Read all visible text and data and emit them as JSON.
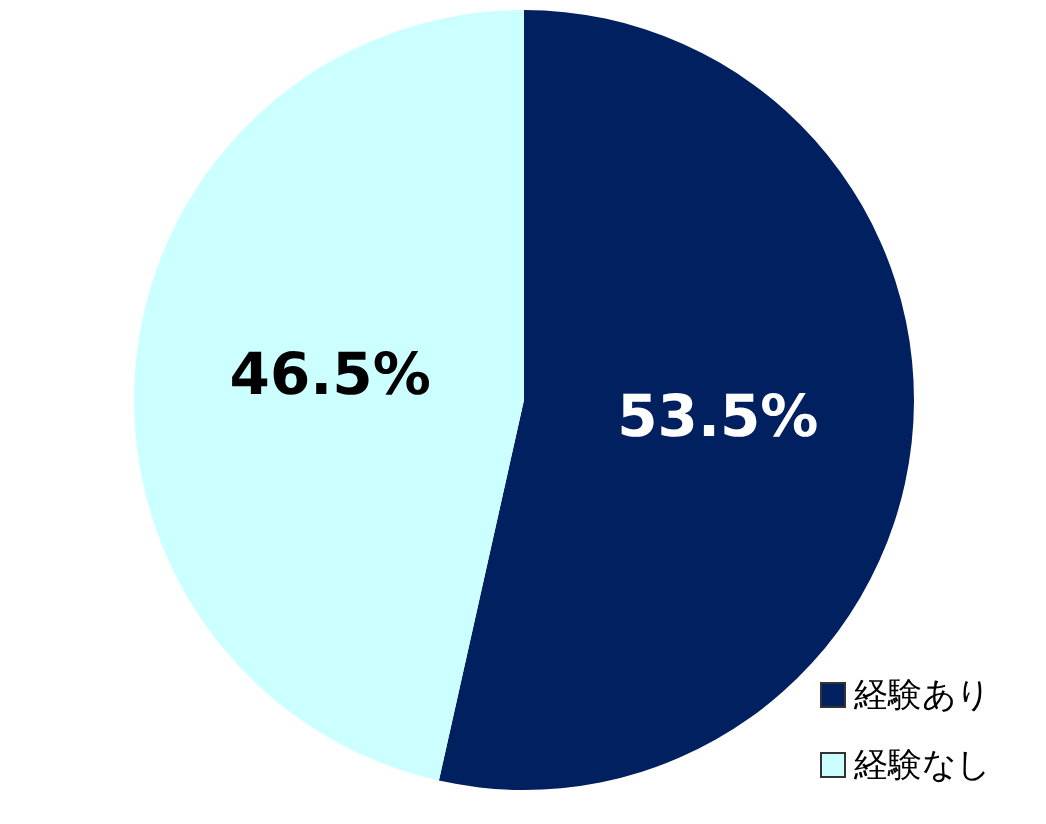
{
  "chart_data": {
    "type": "pie",
    "categories": [
      "経験あり",
      "経験なし"
    ],
    "values": [
      53.5,
      46.5
    ],
    "colors": [
      "#002060",
      "#ccffff"
    ],
    "value_labels": [
      "53.5%",
      "46.5%"
    ],
    "legend": "bottom right"
  }
}
